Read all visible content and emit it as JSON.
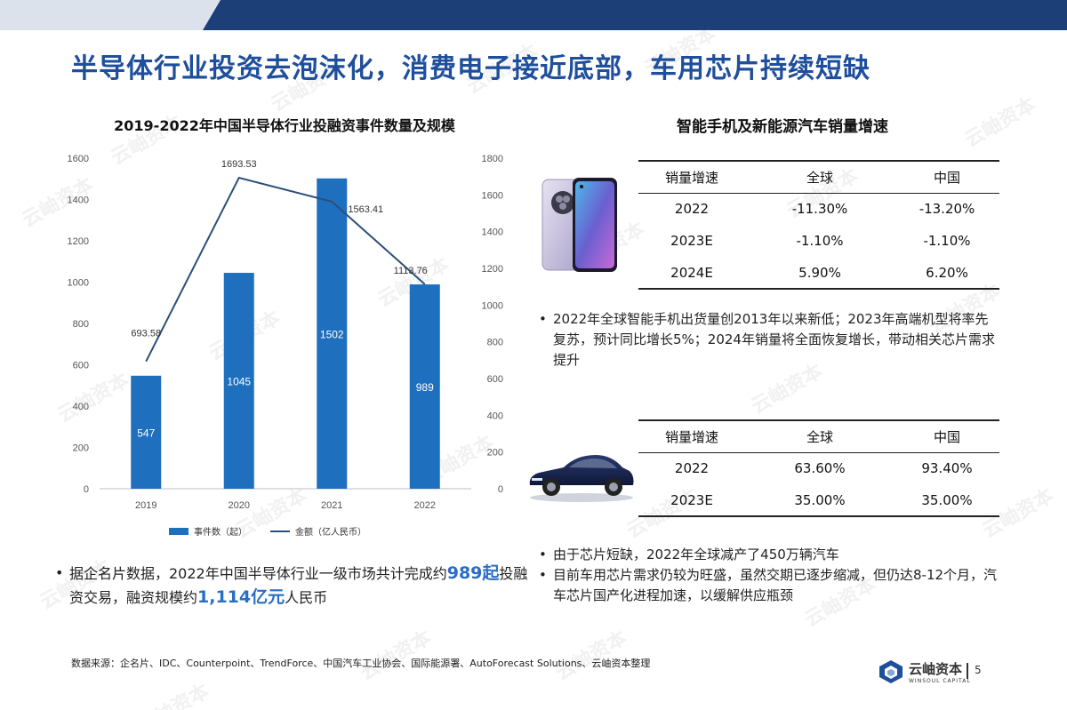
{
  "headline": "半导体行业投资去泡沫化，消费电子接近底部，车用芯片持续短缺",
  "left_chart": {
    "title": "2019-2022年中国半导体行业投融资事件数量及规模",
    "legend_bar": "事件数（起）",
    "legend_line": "金额（亿人民币）"
  },
  "chart_data": {
    "type": "bar",
    "title": "2019-2022年中国半导体行业投融资事件数量及规模",
    "categories": [
      "2019",
      "2020",
      "2021",
      "2022"
    ],
    "series": [
      {
        "name": "事件数（起）",
        "type": "bar",
        "axis": "left",
        "values": [
          547,
          1045,
          1502,
          989
        ],
        "labels": [
          "547",
          "1045",
          "1502",
          "989"
        ],
        "color": "#1f6fbf"
      },
      {
        "name": "金额（亿人民币）",
        "type": "line",
        "axis": "right",
        "values": [
          693.58,
          1693.53,
          1563.41,
          1113.76
        ],
        "labels": [
          "693.58",
          "1693.53",
          "1563.41",
          "1113.76"
        ],
        "color": "#2b4f7a"
      }
    ],
    "ylim_left": [
      0,
      1600
    ],
    "yticks_left": [
      "0",
      "200",
      "400",
      "600",
      "800",
      "1000",
      "1200",
      "1400",
      "1600"
    ],
    "ylim_right": [
      0,
      1800
    ],
    "yticks_right": [
      "0",
      "200",
      "400",
      "600",
      "800",
      "1000",
      "1200",
      "1400",
      "1600",
      "1800"
    ],
    "grid": false,
    "legend_position": "bottom"
  },
  "right_title": "智能手机及新能源汽车销量增速",
  "phone_table": {
    "headers": [
      "销量增速",
      "全球",
      "中国"
    ],
    "rows": [
      [
        "2022",
        "-11.30%",
        "-13.20%"
      ],
      [
        "2023E",
        "-1.10%",
        "-1.10%"
      ],
      [
        "2024E",
        "5.90%",
        "6.20%"
      ]
    ]
  },
  "phone_bullets": [
    "2022年全球智能手机出货量创2013年以来新低；2023年高端机型将率先复苏，预计同比增长5%；2024年销量将全面恢复增长，带动相关芯片需求提升"
  ],
  "car_table": {
    "headers": [
      "销量增速",
      "全球",
      "中国"
    ],
    "rows": [
      [
        "2022",
        "63.60%",
        "93.40%"
      ],
      [
        "2023E",
        "35.00%",
        "35.00%"
      ]
    ]
  },
  "car_bullets": [
    "由于芯片短缺，2022年全球减产了450万辆汽车",
    "目前车用芯片需求仍较为旺盛，虽然交期已逐步缩减，但仍达8-12个月，汽车芯片国产化进程加速，以缓解供应瓶颈"
  ],
  "left_bullet": {
    "part1": "据企名片数据，2022年中国半导体行业一级市场共计完成约",
    "highlight1": "989起",
    "part2": "投融资交易，融资规模约",
    "highlight2": "1,114亿元",
    "part3": "人民币"
  },
  "source": "数据来源：企名片、IDC、Counterpoint、TrendForce、中国汽车工业协会、国际能源署、AutoForecast Solutions、云岫资本整理",
  "logo": {
    "cn": "云岫资本",
    "en": "WINSOUL CAPITAL"
  },
  "page_number": "5",
  "watermark": "云岫资本",
  "colors": {
    "accent": "#1f4f9c",
    "bar": "#1f6fbf",
    "line": "#2b4f7a",
    "highlight": "#2a6ec4"
  }
}
